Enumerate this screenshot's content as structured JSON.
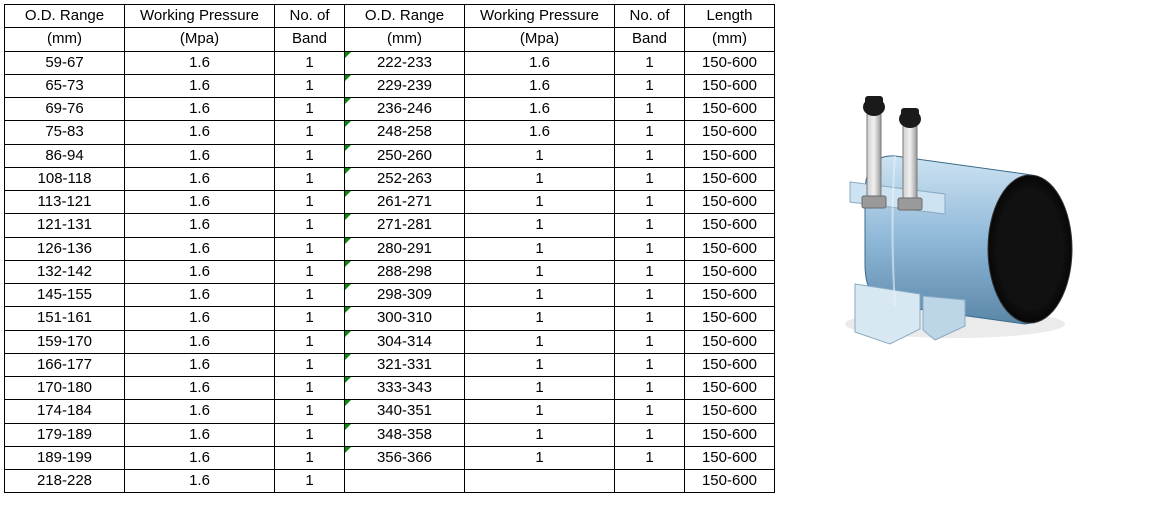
{
  "table": {
    "headers": {
      "od": [
        "O.D. Range",
        "(mm)"
      ],
      "wp": [
        "Working Pressure",
        "(Mpa)"
      ],
      "nb": [
        "No. of",
        "Band"
      ],
      "len": [
        "Length",
        "(mm)"
      ]
    },
    "rows": [
      {
        "od1": "59-67",
        "wp1": "1.6",
        "nb1": "1",
        "od2": "222-233",
        "wp2": "1.6",
        "nb2": "1",
        "len": "150-600",
        "m2": true
      },
      {
        "od1": "65-73",
        "wp1": "1.6",
        "nb1": "1",
        "od2": "229-239",
        "wp2": "1.6",
        "nb2": "1",
        "len": "150-600",
        "m2": true
      },
      {
        "od1": "69-76",
        "wp1": "1.6",
        "nb1": "1",
        "od2": "236-246",
        "wp2": "1.6",
        "nb2": "1",
        "len": "150-600",
        "m2": true
      },
      {
        "od1": "75-83",
        "wp1": "1.6",
        "nb1": "1",
        "od2": "248-258",
        "wp2": "1.6",
        "nb2": "1",
        "len": "150-600",
        "m2": true
      },
      {
        "od1": "86-94",
        "wp1": "1.6",
        "nb1": "1",
        "od2": "250-260",
        "wp2": "1",
        "nb2": "1",
        "len": "150-600",
        "m2": true
      },
      {
        "od1": "108-118",
        "wp1": "1.6",
        "nb1": "1",
        "od2": "252-263",
        "wp2": "1",
        "nb2": "1",
        "len": "150-600",
        "m2": true
      },
      {
        "od1": "113-121",
        "wp1": "1.6",
        "nb1": "1",
        "od2": "261-271",
        "wp2": "1",
        "nb2": "1",
        "len": "150-600",
        "m2": true
      },
      {
        "od1": "121-131",
        "wp1": "1.6",
        "nb1": "1",
        "od2": "271-281",
        "wp2": "1",
        "nb2": "1",
        "len": "150-600",
        "m2": true
      },
      {
        "od1": "126-136",
        "wp1": "1.6",
        "nb1": "1",
        "od2": "280-291",
        "wp2": "1",
        "nb2": "1",
        "len": "150-600",
        "m2": true
      },
      {
        "od1": "132-142",
        "wp1": "1.6",
        "nb1": "1",
        "od2": "288-298",
        "wp2": "1",
        "nb2": "1",
        "len": "150-600",
        "m2": true
      },
      {
        "od1": "145-155",
        "wp1": "1.6",
        "nb1": "1",
        "od2": "298-309",
        "wp2": "1",
        "nb2": "1",
        "len": "150-600",
        "m2": true
      },
      {
        "od1": "151-161",
        "wp1": "1.6",
        "nb1": "1",
        "od2": "300-310",
        "wp2": "1",
        "nb2": "1",
        "len": "150-600",
        "m2": true
      },
      {
        "od1": "159-170",
        "wp1": "1.6",
        "nb1": "1",
        "od2": "304-314",
        "wp2": "1",
        "nb2": "1",
        "len": "150-600",
        "m2": true
      },
      {
        "od1": "166-177",
        "wp1": "1.6",
        "nb1": "1",
        "od2": "321-331",
        "wp2": "1",
        "nb2": "1",
        "len": "150-600",
        "m2": true
      },
      {
        "od1": "170-180",
        "wp1": "1.6",
        "nb1": "1",
        "od2": "333-343",
        "wp2": "1",
        "nb2": "1",
        "len": "150-600",
        "m2": true
      },
      {
        "od1": "174-184",
        "wp1": "1.6",
        "nb1": "1",
        "od2": "340-351",
        "wp2": "1",
        "nb2": "1",
        "len": "150-600",
        "m2": true
      },
      {
        "od1": "179-189",
        "wp1": "1.6",
        "nb1": "1",
        "od2": "348-358",
        "wp2": "1",
        "nb2": "1",
        "len": "150-600",
        "m2": true
      },
      {
        "od1": "189-199",
        "wp1": "1.6",
        "nb1": "1",
        "od2": "356-366",
        "wp2": "1",
        "nb2": "1",
        "len": "150-600",
        "m2": true
      },
      {
        "od1": "218-228",
        "wp1": "1.6",
        "nb1": "1",
        "od2": "",
        "wp2": "",
        "nb2": "",
        "len": "150-600",
        "m2": false
      }
    ]
  },
  "colors": {
    "border": "#000000",
    "text": "#000000",
    "marker": "#0a8a0a",
    "clamp_body": "#8fb8d8",
    "clamp_body_light": "#cde3f2",
    "clamp_dark": "#1a1a1a",
    "bolt": "#b8b8b8",
    "bolt_dark": "#6a6a6a",
    "plate": "#d8e8f2"
  }
}
